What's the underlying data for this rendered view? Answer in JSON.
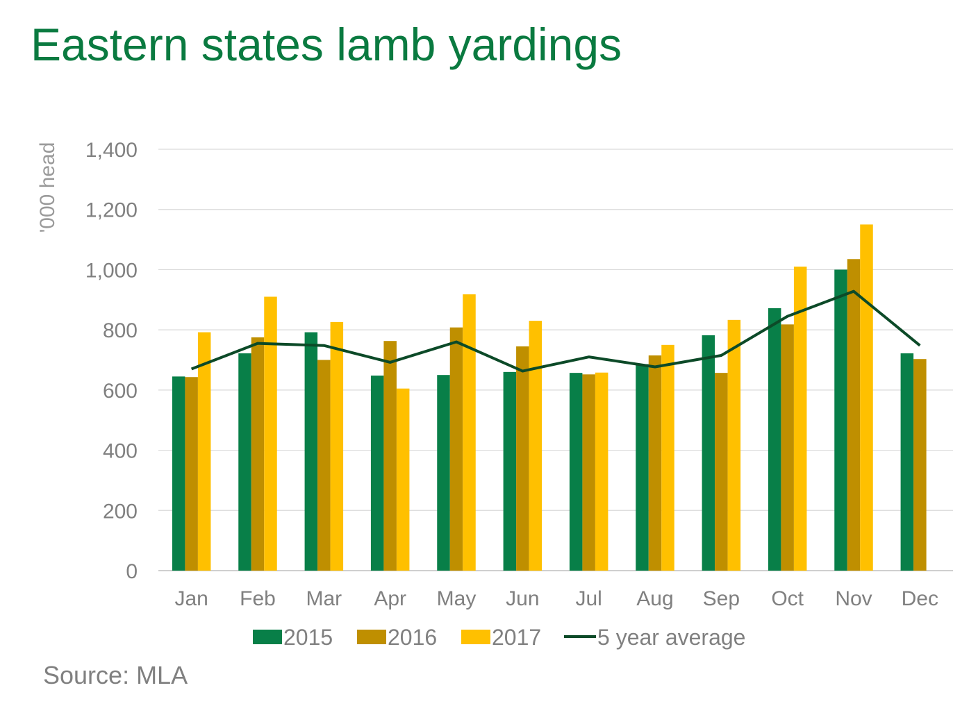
{
  "title": "Eastern states lamb yardings",
  "source": "Source: MLA",
  "chart_data": {
    "type": "bar",
    "title": "Eastern states lamb yardings",
    "ylabel": "'000 head",
    "xlabel": "",
    "ylim": [
      0,
      1400
    ],
    "yticks": [
      0,
      200,
      400,
      600,
      800,
      1000,
      1200,
      1400
    ],
    "ytick_labels": [
      "0",
      "200",
      "400",
      "600",
      "800",
      "1,000",
      "1,200",
      "1,400"
    ],
    "grid": true,
    "legend_position": "bottom",
    "categories": [
      "Jan",
      "Feb",
      "Mar",
      "Apr",
      "May",
      "Jun",
      "Jul",
      "Aug",
      "Sep",
      "Oct",
      "Nov",
      "Dec"
    ],
    "series": [
      {
        "name": "2015",
        "type": "bar",
        "color": "#087f48",
        "values": [
          645,
          722,
          792,
          648,
          650,
          660,
          657,
          686,
          782,
          872,
          1000,
          722
        ]
      },
      {
        "name": "2016",
        "type": "bar",
        "color": "#bf8f00",
        "values": [
          643,
          775,
          700,
          763,
          808,
          745,
          652,
          715,
          657,
          818,
          1035,
          703
        ]
      },
      {
        "name": "2017",
        "type": "bar",
        "color": "#ffc000",
        "values": [
          792,
          910,
          826,
          605,
          918,
          830,
          658,
          750,
          833,
          1010,
          1150,
          null
        ]
      },
      {
        "name": "5 year average",
        "type": "line",
        "color": "#0c4a28",
        "values": [
          670,
          755,
          748,
          692,
          760,
          663,
          710,
          677,
          715,
          845,
          928,
          748
        ]
      }
    ]
  }
}
